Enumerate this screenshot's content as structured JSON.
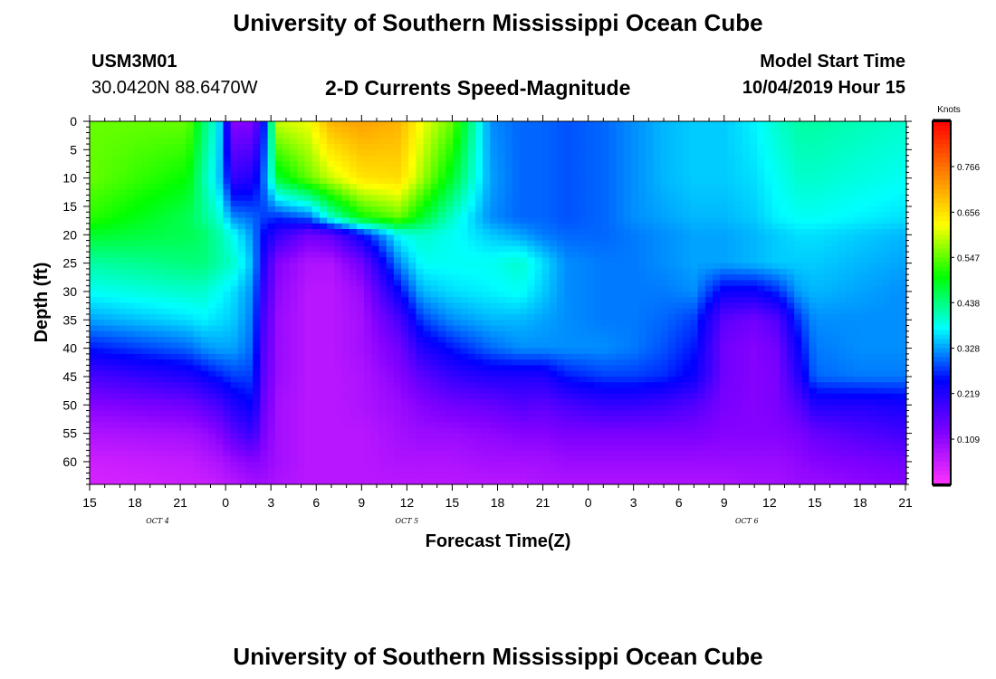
{
  "header": {
    "title_top": "University of Southern Mississippi Ocean Cube",
    "station_id": "USM3M01",
    "coords": "30.0420N 88.6470W",
    "chart_title": "2-D Currents Speed-Magnitude",
    "model_label": "Model Start Time",
    "model_time": "10/04/2019 Hour 15",
    "title_bottom": "University of Southern Mississippi Ocean Cube"
  },
  "chart_data": {
    "type": "heatmap",
    "title": "2-D Currents Speed-Magnitude",
    "xlabel": "Forecast Time(Z)",
    "ylabel": "Depth (ft)",
    "x_hours_range": [
      0,
      54
    ],
    "x_ticks": [
      "15",
      "18",
      "21",
      "0",
      "3",
      "6",
      "9",
      "12",
      "15",
      "18",
      "21",
      "0",
      "3",
      "6",
      "9",
      "12",
      "15",
      "18",
      "21"
    ],
    "day_labels": [
      {
        "label": "OCT 4",
        "hour": 4.5
      },
      {
        "label": "OCT 5",
        "hour": 21
      },
      {
        "label": "OCT 6",
        "hour": 43.5
      }
    ],
    "y_ticks": [
      0,
      5,
      10,
      15,
      20,
      25,
      30,
      35,
      40,
      45,
      50,
      55,
      60
    ],
    "ylim": [
      0,
      64
    ],
    "colorbar": {
      "unit_label": "Knots",
      "ticks": [
        0.766,
        0.656,
        0.547,
        0.438,
        0.328,
        0.219,
        0.109
      ],
      "range": [
        0,
        0.875
      ],
      "colors": [
        "#ff33ff",
        "#8000ff",
        "#0000ff",
        "#00ffff",
        "#00ff00",
        "#ffff00",
        "#ff8000",
        "#ff0000"
      ]
    },
    "columns_hours": [
      0,
      6.5,
      7.5,
      8.5,
      9.5,
      10.8,
      11.5,
      12.5,
      14.5,
      16,
      18,
      20.5,
      22,
      24,
      26.5,
      28.5,
      30,
      31.5,
      34,
      36,
      38,
      40,
      42,
      44,
      45.5,
      47,
      48,
      51,
      54
    ],
    "rows_depth": [
      0,
      10,
      17,
      20,
      25,
      30,
      35,
      40,
      45,
      50,
      55,
      60,
      64
    ],
    "speed_knots": [
      [
        0.55,
        0.55,
        0.45,
        0.38,
        0.12,
        0.12,
        0.25,
        0.6,
        0.62,
        0.7,
        0.72,
        0.7,
        0.62,
        0.55,
        0.32,
        0.3,
        0.3,
        0.29,
        0.3,
        0.32,
        0.34,
        0.35,
        0.35,
        0.37,
        0.4,
        0.42,
        0.42,
        0.41,
        0.4
      ],
      [
        0.55,
        0.5,
        0.42,
        0.36,
        0.2,
        0.22,
        0.3,
        0.48,
        0.55,
        0.6,
        0.65,
        0.66,
        0.58,
        0.48,
        0.33,
        0.3,
        0.3,
        0.29,
        0.3,
        0.32,
        0.34,
        0.35,
        0.35,
        0.36,
        0.38,
        0.4,
        0.4,
        0.39,
        0.38
      ],
      [
        0.52,
        0.46,
        0.43,
        0.4,
        0.32,
        0.3,
        0.28,
        0.27,
        0.3,
        0.4,
        0.5,
        0.55,
        0.48,
        0.4,
        0.32,
        0.3,
        0.3,
        0.29,
        0.3,
        0.32,
        0.33,
        0.34,
        0.34,
        0.35,
        0.37,
        0.38,
        0.38,
        0.37,
        0.36
      ],
      [
        0.48,
        0.46,
        0.45,
        0.42,
        0.38,
        0.32,
        0.25,
        0.2,
        0.14,
        0.16,
        0.25,
        0.38,
        0.4,
        0.38,
        0.35,
        0.33,
        0.31,
        0.3,
        0.3,
        0.31,
        0.32,
        0.33,
        0.33,
        0.34,
        0.35,
        0.36,
        0.36,
        0.35,
        0.34
      ],
      [
        0.42,
        0.44,
        0.44,
        0.42,
        0.4,
        0.34,
        0.22,
        0.12,
        0.08,
        0.08,
        0.14,
        0.32,
        0.38,
        0.38,
        0.38,
        0.4,
        0.36,
        0.32,
        0.31,
        0.31,
        0.32,
        0.33,
        0.33,
        0.34,
        0.35,
        0.35,
        0.35,
        0.34,
        0.33
      ],
      [
        0.38,
        0.4,
        0.4,
        0.38,
        0.36,
        0.32,
        0.2,
        0.11,
        0.07,
        0.07,
        0.1,
        0.25,
        0.34,
        0.36,
        0.37,
        0.38,
        0.35,
        0.32,
        0.31,
        0.31,
        0.31,
        0.32,
        0.24,
        0.24,
        0.27,
        0.33,
        0.34,
        0.33,
        0.32
      ],
      [
        0.33,
        0.36,
        0.37,
        0.36,
        0.35,
        0.31,
        0.18,
        0.1,
        0.07,
        0.07,
        0.09,
        0.18,
        0.28,
        0.32,
        0.34,
        0.34,
        0.33,
        0.32,
        0.31,
        0.31,
        0.3,
        0.28,
        0.16,
        0.14,
        0.17,
        0.28,
        0.32,
        0.32,
        0.32
      ],
      [
        0.26,
        0.3,
        0.32,
        0.33,
        0.33,
        0.3,
        0.17,
        0.1,
        0.07,
        0.07,
        0.09,
        0.14,
        0.22,
        0.26,
        0.3,
        0.32,
        0.32,
        0.32,
        0.32,
        0.31,
        0.29,
        0.26,
        0.14,
        0.12,
        0.14,
        0.25,
        0.31,
        0.32,
        0.32
      ],
      [
        0.18,
        0.22,
        0.24,
        0.26,
        0.28,
        0.28,
        0.16,
        0.1,
        0.07,
        0.07,
        0.08,
        0.12,
        0.16,
        0.2,
        0.22,
        0.22,
        0.22,
        0.26,
        0.28,
        0.28,
        0.27,
        0.24,
        0.14,
        0.12,
        0.13,
        0.22,
        0.3,
        0.31,
        0.31
      ],
      [
        0.12,
        0.14,
        0.16,
        0.18,
        0.22,
        0.25,
        0.15,
        0.09,
        0.07,
        0.07,
        0.08,
        0.1,
        0.12,
        0.14,
        0.15,
        0.17,
        0.16,
        0.18,
        0.2,
        0.2,
        0.19,
        0.17,
        0.13,
        0.12,
        0.13,
        0.17,
        0.22,
        0.22,
        0.23
      ],
      [
        0.08,
        0.09,
        0.1,
        0.12,
        0.16,
        0.2,
        0.13,
        0.09,
        0.07,
        0.07,
        0.07,
        0.09,
        0.1,
        0.1,
        0.11,
        0.12,
        0.12,
        0.13,
        0.13,
        0.13,
        0.13,
        0.13,
        0.12,
        0.12,
        0.12,
        0.13,
        0.15,
        0.17,
        0.19
      ],
      [
        0.05,
        0.06,
        0.07,
        0.08,
        0.1,
        0.12,
        0.11,
        0.09,
        0.07,
        0.07,
        0.07,
        0.08,
        0.08,
        0.08,
        0.09,
        0.09,
        0.09,
        0.1,
        0.1,
        0.1,
        0.1,
        0.1,
        0.1,
        0.1,
        0.1,
        0.11,
        0.12,
        0.13,
        0.14
      ],
      [
        0.04,
        0.05,
        0.05,
        0.06,
        0.07,
        0.09,
        0.09,
        0.08,
        0.07,
        0.07,
        0.07,
        0.07,
        0.07,
        0.07,
        0.07,
        0.07,
        0.08,
        0.08,
        0.08,
        0.08,
        0.08,
        0.08,
        0.08,
        0.09,
        0.09,
        0.1,
        0.1,
        0.11,
        0.12
      ]
    ]
  }
}
